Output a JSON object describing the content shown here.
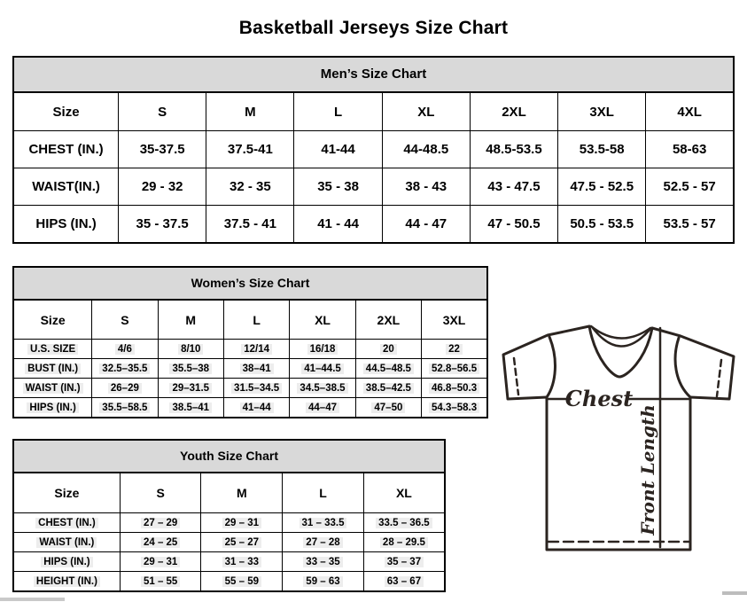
{
  "page_title": "Basketball Jerseys Size Chart",
  "mens_chart": {
    "title": "Men’s Size Chart",
    "columns": [
      "Size",
      "S",
      "M",
      "L",
      "XL",
      "2XL",
      "3XL",
      "4XL"
    ],
    "rows": [
      {
        "label": "CHEST (IN.)",
        "values": [
          "35-37.5",
          "37.5-41",
          "41-44",
          "44-48.5",
          "48.5-53.5",
          "53.5-58",
          "58-63"
        ]
      },
      {
        "label": "WAIST(IN.)",
        "values": [
          "29 - 32",
          "32 - 35",
          "35 - 38",
          "38 - 43",
          "43 - 47.5",
          "47.5 - 52.5",
          "52.5 - 57"
        ]
      },
      {
        "label": "HIPS (IN.)",
        "values": [
          "35 - 37.5",
          "37.5 - 41",
          "41 - 44",
          "44 - 47",
          "47 - 50.5",
          "50.5 - 53.5",
          "53.5 - 57"
        ]
      }
    ]
  },
  "womens_chart": {
    "title": "Women’s Size Chart",
    "columns": [
      "Size",
      "S",
      "M",
      "L",
      "XL",
      "2XL",
      "3XL"
    ],
    "rows": [
      {
        "label": "U.S. SIZE",
        "values": [
          "4/6",
          "8/10",
          "12/14",
          "16/18",
          "20",
          "22"
        ]
      },
      {
        "label": "BUST (IN.)",
        "values": [
          "32.5–35.5",
          "35.5–38",
          "38–41",
          "41–44.5",
          "44.5–48.5",
          "52.8–56.5"
        ]
      },
      {
        "label": "WAIST (IN.)",
        "values": [
          "26–29",
          "29–31.5",
          "31.5–34.5",
          "34.5–38.5",
          "38.5–42.5",
          "46.8–50.3"
        ]
      },
      {
        "label": "HIPS (IN.)",
        "values": [
          "35.5–58.5",
          "38.5–41",
          "41–44",
          "44–47",
          "47–50",
          "54.3–58.3"
        ]
      }
    ]
  },
  "youth_chart": {
    "title": "Youth Size Chart",
    "columns": [
      "Size",
      "S",
      "M",
      "L",
      "XL"
    ],
    "rows": [
      {
        "label": "CHEST (IN.)",
        "values": [
          "27 – 29",
          "29 – 31",
          "31 – 33.5",
          "33.5 – 36.5"
        ]
      },
      {
        "label": "WAIST (IN.)",
        "values": [
          "24 – 25",
          "25 – 27",
          "27 – 28",
          "28 – 29.5"
        ]
      },
      {
        "label": "HIPS (IN.)",
        "values": [
          "29 – 31",
          "31 – 33",
          "33 – 35",
          "35 – 37"
        ]
      },
      {
        "label": "HEIGHT (IN.)",
        "values": [
          "51 – 55",
          "55 – 59",
          "59 – 63",
          "63 – 67"
        ]
      }
    ]
  },
  "diagram": {
    "chest_label": "Chest",
    "front_length_label": "Front Length"
  }
}
